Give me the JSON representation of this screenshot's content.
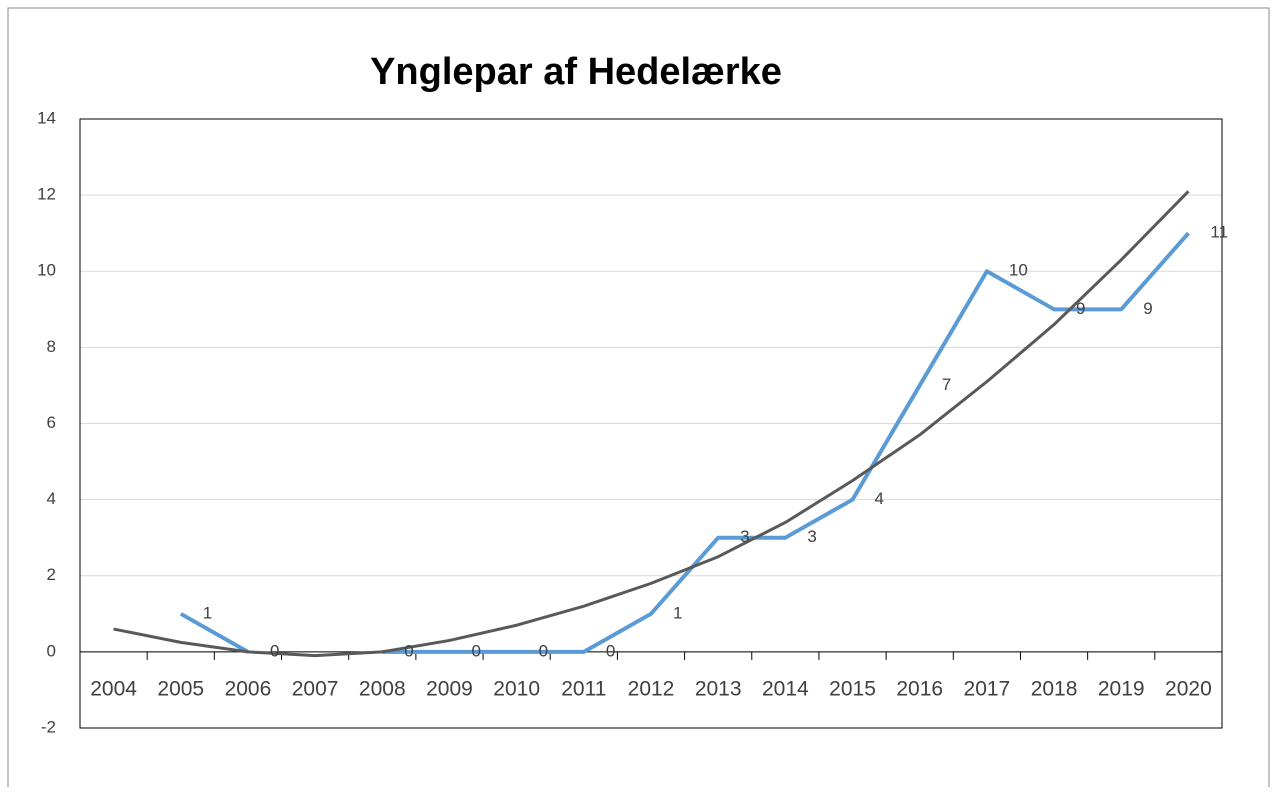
{
  "chart_data": {
    "type": "line",
    "title": "Ynglepar af Hedelærke",
    "categories": [
      "2004",
      "2005",
      "2006",
      "2007",
      "2008",
      "2009",
      "2010",
      "2011",
      "2012",
      "2013",
      "2014",
      "2015",
      "2016",
      "2017",
      "2018",
      "2019",
      "2020"
    ],
    "series": [
      {
        "color": "#5b9bd5",
        "values": [
          null,
          1,
          0,
          null,
          0,
          0,
          0,
          0,
          1,
          3,
          3,
          4,
          7,
          10,
          9,
          9,
          11
        ]
      },
      {
        "color": "#595959",
        "values": [
          0.6,
          0.25,
          0,
          -0.1,
          0,
          0.3,
          0.7,
          1.2,
          1.8,
          2.5,
          3.4,
          4.5,
          5.7,
          7.1,
          8.6,
          10.3,
          12.1
        ]
      }
    ],
    "data_labels": true,
    "ylim": [
      -2,
      14
    ],
    "yticks": [
      -2,
      0,
      2,
      4,
      6,
      8,
      10,
      12,
      14
    ],
    "grid": true
  }
}
